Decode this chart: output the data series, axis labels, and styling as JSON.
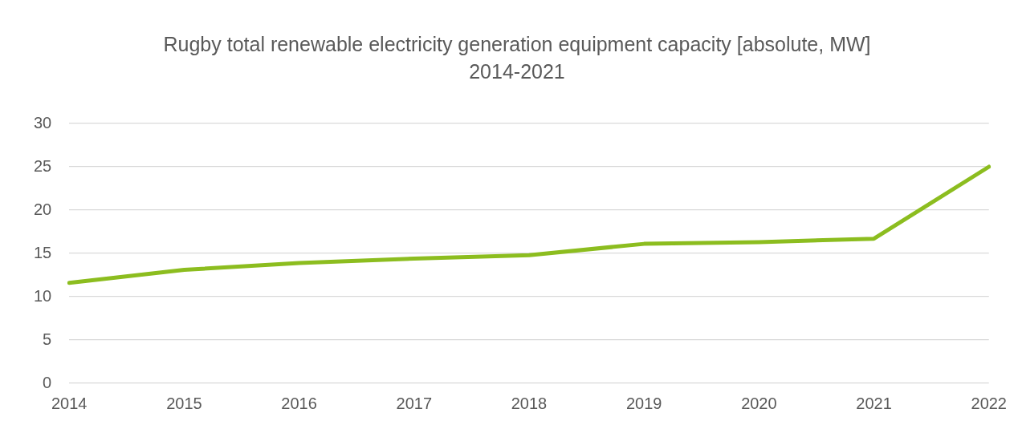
{
  "chart_data": {
    "type": "line",
    "title": "Rugby total renewable electricity generation equipment capacity [absolute, MW] 2014-2021",
    "categories": [
      "2014",
      "2015",
      "2016",
      "2017",
      "2018",
      "2019",
      "2020",
      "2021",
      "2022"
    ],
    "series": [
      {
        "color": "#8cbd1f",
        "values": [
          11.6,
          13.1,
          13.9,
          14.4,
          14.8,
          16.1,
          16.3,
          16.7,
          25.0
        ]
      }
    ],
    "ylim": [
      0,
      30
    ],
    "yticks": [
      0,
      5,
      10,
      15,
      20,
      25,
      30
    ],
    "grid": "y",
    "legend": false,
    "marker": "none",
    "line_style": "solid"
  }
}
